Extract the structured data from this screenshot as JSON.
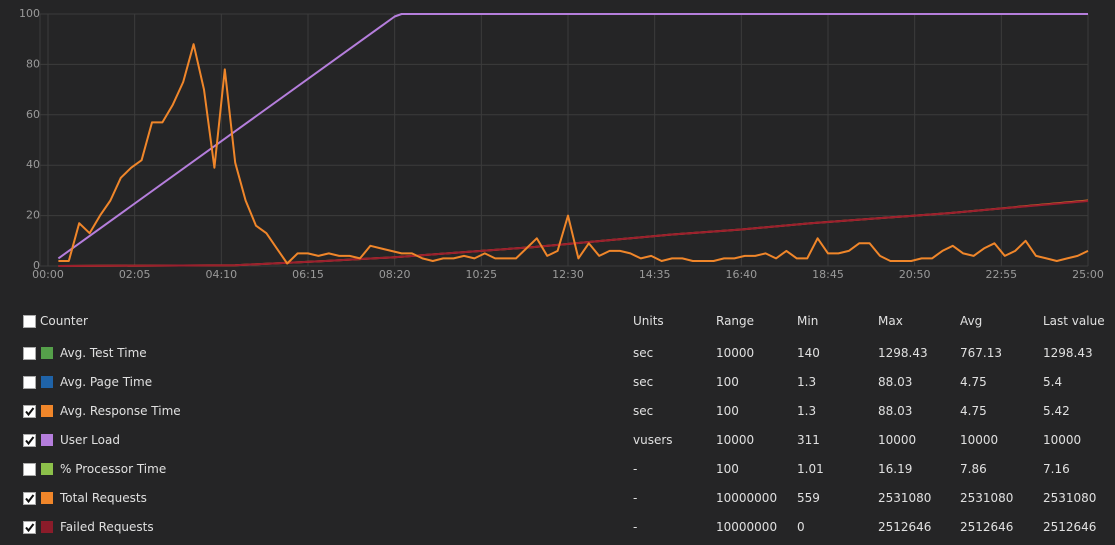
{
  "chart_data": {
    "type": "line",
    "xlim": [
      0,
      1500
    ],
    "ylim": [
      0,
      100
    ],
    "xticks": [
      {
        "value": 0,
        "label": "00:00"
      },
      {
        "value": 125,
        "label": "02:05"
      },
      {
        "value": 250,
        "label": "04:10"
      },
      {
        "value": 375,
        "label": "06:15"
      },
      {
        "value": 500,
        "label": "08:20"
      },
      {
        "value": 625,
        "label": "10:25"
      },
      {
        "value": 750,
        "label": "12:30"
      },
      {
        "value": 875,
        "label": "14:35"
      },
      {
        "value": 1000,
        "label": "16:40"
      },
      {
        "value": 1125,
        "label": "18:45"
      },
      {
        "value": 1250,
        "label": "20:50"
      },
      {
        "value": 1375,
        "label": "22:55"
      },
      {
        "value": 1500,
        "label": "25:00"
      }
    ],
    "yticks": [
      0,
      20,
      40,
      60,
      80,
      100
    ],
    "grid": true,
    "series": [
      {
        "color": "#b57edc",
        "x": [
          15,
          500,
          510,
          1500
        ],
        "values": [
          3,
          99,
          100,
          100
        ]
      },
      {
        "color": "#f0862a",
        "x": [
          15,
          270,
          400,
          500,
          600,
          700,
          800,
          900,
          1000,
          1100,
          1200,
          1300,
          1400,
          1500
        ],
        "values": [
          0,
          0.3,
          2,
          3.5,
          5.5,
          7.5,
          10,
          12.5,
          14.5,
          17,
          19,
          21,
          23.5,
          26
        ]
      },
      {
        "color": "#9b1e2e",
        "x": [
          15,
          270,
          400,
          500,
          600,
          700,
          800,
          900,
          1000,
          1100,
          1200,
          1300,
          1400,
          1500
        ],
        "values": [
          0,
          0.3,
          2,
          3.5,
          5.5,
          7.5,
          10,
          12.5,
          14.5,
          17,
          19,
          21,
          23.4,
          25.8
        ]
      },
      {
        "color": "#f0862a",
        "x": [
          15,
          30,
          45,
          60,
          75,
          90,
          105,
          120,
          135,
          150,
          165,
          180,
          195,
          210,
          225,
          240,
          255,
          270,
          285,
          300,
          315,
          330,
          345,
          360,
          375,
          390,
          405,
          420,
          435,
          450,
          465,
          480,
          495,
          510,
          525,
          540,
          555,
          570,
          585,
          600,
          615,
          630,
          645,
          660,
          675,
          690,
          705,
          720,
          735,
          750,
          765,
          780,
          795,
          810,
          825,
          840,
          855,
          870,
          885,
          900,
          915,
          930,
          945,
          960,
          975,
          990,
          1005,
          1020,
          1035,
          1050,
          1065,
          1080,
          1095,
          1110,
          1125,
          1140,
          1155,
          1170,
          1185,
          1200,
          1215,
          1230,
          1245,
          1260,
          1275,
          1290,
          1305,
          1320,
          1335,
          1350,
          1365,
          1380,
          1395,
          1410,
          1425,
          1440,
          1455,
          1470,
          1485,
          1500
        ],
        "values": [
          2,
          2,
          17,
          13,
          20,
          26,
          35,
          39,
          42,
          57,
          57,
          64,
          73,
          88,
          70,
          39,
          78,
          41,
          26,
          16,
          13,
          7,
          1,
          5,
          5,
          4,
          5,
          4,
          4,
          3,
          8,
          7,
          6,
          5,
          5,
          3,
          2,
          3,
          3,
          4,
          3,
          5,
          3,
          3,
          3,
          7,
          11,
          4,
          6,
          20,
          3,
          9,
          4,
          6,
          6,
          5,
          3,
          4,
          2,
          3,
          3,
          2,
          2,
          2,
          3,
          3,
          4,
          4,
          5,
          3,
          6,
          3,
          3,
          11,
          5,
          5,
          6,
          9,
          9,
          4,
          2,
          2,
          2,
          3,
          3,
          6,
          8,
          5,
          4,
          7,
          9,
          4,
          6,
          10,
          4,
          3,
          2,
          3,
          4,
          6
        ]
      }
    ]
  },
  "table": {
    "header": [
      "Counter",
      "Units",
      "Range",
      "Min",
      "Max",
      "Avg",
      "Last value"
    ],
    "header_checked": false,
    "rows": [
      {
        "checked": false,
        "color": "#55a04a",
        "cells": [
          "Avg. Test Time",
          "sec",
          10000,
          140,
          1298.43,
          767.13,
          1298.43
        ]
      },
      {
        "checked": false,
        "color": "#1f63a8",
        "cells": [
          "Avg. Page Time",
          "sec",
          100,
          1.3,
          88.03,
          4.75,
          5.4
        ]
      },
      {
        "checked": true,
        "color": "#f0862a",
        "cells": [
          "Avg. Response Time",
          "sec",
          100,
          1.3,
          88.03,
          4.75,
          5.42
        ]
      },
      {
        "checked": true,
        "color": "#b57edc",
        "cells": [
          "User Load",
          "vusers",
          10000,
          311,
          10000,
          10000,
          10000
        ]
      },
      {
        "checked": false,
        "color": "#8cc04a",
        "cells": [
          "% Processor Time",
          "-",
          100,
          1.01,
          16.19,
          7.86,
          7.16
        ]
      },
      {
        "checked": true,
        "color": "#f0862a",
        "cells": [
          "Total Requests",
          "-",
          10000000,
          559,
          2531080,
          2531080,
          2531080
        ]
      },
      {
        "checked": true,
        "color": "#8b1c2a",
        "cells": [
          "Failed Requests",
          "-",
          10000000,
          0,
          2512646,
          2512646,
          2512646
        ]
      }
    ]
  }
}
